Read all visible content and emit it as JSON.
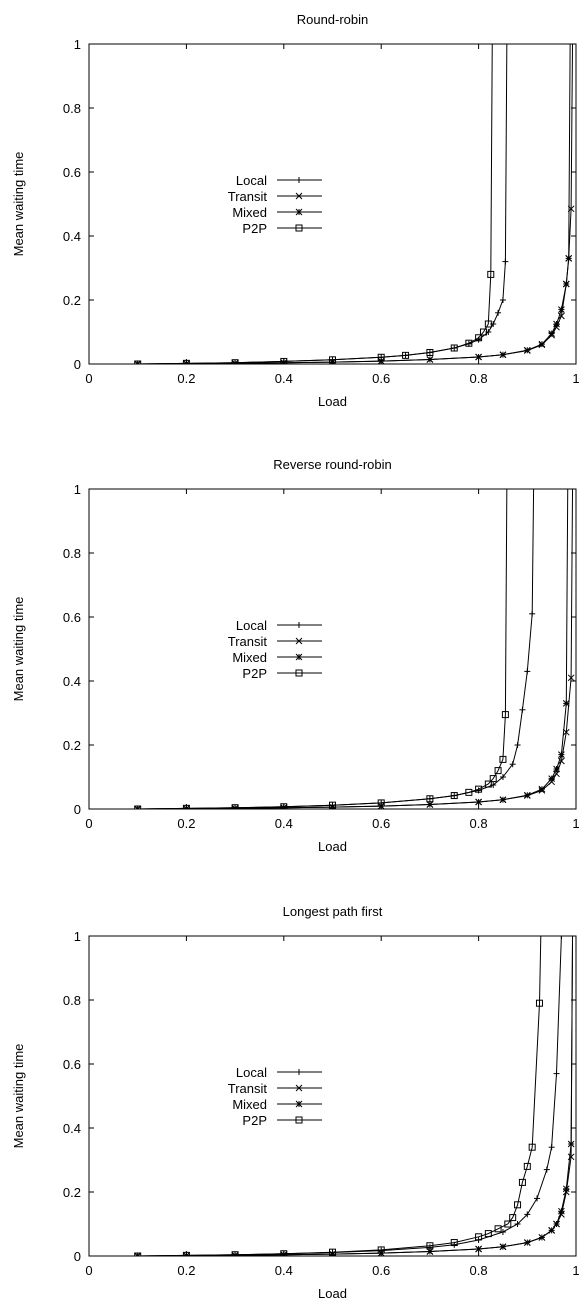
{
  "chart_data": [
    {
      "type": "line",
      "title": "Round-robin",
      "xlabel": "Load",
      "ylabel": "Mean waiting time",
      "xlim": [
        0,
        1
      ],
      "ylim": [
        0,
        1
      ],
      "xticks": [
        "0",
        "0.2",
        "0.4",
        "0.6",
        "0.8",
        "1"
      ],
      "yticks": [
        "0",
        "0.2",
        "0.4",
        "0.6",
        "0.8",
        "1"
      ],
      "grid": false,
      "legend_position": "center-left",
      "series": [
        {
          "name": "Local",
          "marker": "plus",
          "x": [
            0.1,
            0.2,
            0.3,
            0.4,
            0.5,
            0.6,
            0.65,
            0.7,
            0.75,
            0.78,
            0.8,
            0.82,
            0.83,
            0.84,
            0.85,
            0.855
          ],
          "y": [
            0,
            0.002,
            0.004,
            0.008,
            0.013,
            0.021,
            0.027,
            0.036,
            0.05,
            0.063,
            0.076,
            0.1,
            0.125,
            0.16,
            0.2,
            0.32
          ]
        },
        {
          "name": "Transit",
          "marker": "x",
          "x": [
            0.1,
            0.2,
            0.3,
            0.4,
            0.5,
            0.6,
            0.7,
            0.8,
            0.85,
            0.9,
            0.93,
            0.95,
            0.96,
            0.97,
            0.98,
            0.985,
            0.99
          ],
          "y": [
            0,
            0.001,
            0.002,
            0.004,
            0.006,
            0.009,
            0.014,
            0.022,
            0.029,
            0.042,
            0.06,
            0.09,
            0.115,
            0.15,
            0.25,
            0.33,
            0.485
          ]
        },
        {
          "name": "Mixed",
          "marker": "asterisk",
          "x": [
            0.1,
            0.2,
            0.3,
            0.4,
            0.5,
            0.6,
            0.7,
            0.8,
            0.85,
            0.9,
            0.93,
            0.95,
            0.96,
            0.97,
            0.98,
            0.985
          ],
          "y": [
            0,
            0.001,
            0.002,
            0.004,
            0.006,
            0.009,
            0.014,
            0.022,
            0.029,
            0.043,
            0.062,
            0.095,
            0.125,
            0.17,
            0.25,
            0.33
          ]
        },
        {
          "name": "P2P",
          "marker": "square",
          "x": [
            0.1,
            0.2,
            0.3,
            0.4,
            0.5,
            0.6,
            0.65,
            0.7,
            0.75,
            0.78,
            0.8,
            0.81,
            0.82,
            0.825
          ],
          "y": [
            0,
            0.002,
            0.004,
            0.008,
            0.013,
            0.021,
            0.027,
            0.036,
            0.05,
            0.065,
            0.082,
            0.1,
            0.125,
            0.28
          ]
        }
      ]
    },
    {
      "type": "line",
      "title": "Reverse round-robin",
      "xlabel": "Load",
      "ylabel": "Mean waiting time",
      "xlim": [
        0,
        1
      ],
      "ylim": [
        0,
        1
      ],
      "xticks": [
        "0",
        "0.2",
        "0.4",
        "0.6",
        "0.8",
        "1"
      ],
      "yticks": [
        "0",
        "0.2",
        "0.4",
        "0.6",
        "0.8",
        "1"
      ],
      "grid": false,
      "legend_position": "center-left",
      "series": [
        {
          "name": "Local",
          "marker": "plus",
          "x": [
            0.1,
            0.2,
            0.3,
            0.4,
            0.5,
            0.6,
            0.7,
            0.75,
            0.8,
            0.83,
            0.85,
            0.87,
            0.88,
            0.89,
            0.9,
            0.91
          ],
          "y": [
            0,
            0.002,
            0.004,
            0.007,
            0.012,
            0.019,
            0.032,
            0.042,
            0.058,
            0.075,
            0.1,
            0.14,
            0.2,
            0.31,
            0.43,
            0.61
          ]
        },
        {
          "name": "Transit",
          "marker": "x",
          "x": [
            0.1,
            0.2,
            0.3,
            0.4,
            0.5,
            0.6,
            0.7,
            0.8,
            0.85,
            0.9,
            0.93,
            0.95,
            0.96,
            0.97,
            0.98,
            0.99
          ],
          "y": [
            0,
            0.001,
            0.002,
            0.004,
            0.006,
            0.009,
            0.014,
            0.022,
            0.029,
            0.042,
            0.058,
            0.085,
            0.11,
            0.15,
            0.24,
            0.41
          ]
        },
        {
          "name": "Mixed",
          "marker": "asterisk",
          "x": [
            0.1,
            0.2,
            0.3,
            0.4,
            0.5,
            0.6,
            0.7,
            0.8,
            0.85,
            0.9,
            0.93,
            0.95,
            0.96,
            0.97,
            0.98
          ],
          "y": [
            0,
            0.001,
            0.002,
            0.004,
            0.006,
            0.009,
            0.014,
            0.022,
            0.029,
            0.043,
            0.062,
            0.095,
            0.125,
            0.17,
            0.33
          ]
        },
        {
          "name": "P2P",
          "marker": "square",
          "x": [
            0.1,
            0.2,
            0.3,
            0.4,
            0.5,
            0.6,
            0.7,
            0.75,
            0.78,
            0.8,
            0.82,
            0.83,
            0.84,
            0.85,
            0.855
          ],
          "y": [
            0,
            0.002,
            0.004,
            0.007,
            0.012,
            0.019,
            0.032,
            0.042,
            0.052,
            0.062,
            0.078,
            0.095,
            0.12,
            0.155,
            0.295
          ]
        }
      ]
    },
    {
      "type": "line",
      "title": "Longest path first",
      "xlabel": "Load",
      "ylabel": "Mean waiting time",
      "xlim": [
        0,
        1
      ],
      "ylim": [
        0,
        1
      ],
      "xticks": [
        "0",
        "0.2",
        "0.4",
        "0.6",
        "0.8",
        "1"
      ],
      "yticks": [
        "0",
        "0.2",
        "0.4",
        "0.6",
        "0.8",
        "1"
      ],
      "grid": false,
      "legend_position": "center-left",
      "series": [
        {
          "name": "Local",
          "marker": "plus",
          "x": [
            0.1,
            0.2,
            0.3,
            0.4,
            0.5,
            0.6,
            0.7,
            0.75,
            0.8,
            0.85,
            0.88,
            0.9,
            0.92,
            0.94,
            0.95,
            0.96,
            0.97
          ],
          "y": [
            0,
            0.002,
            0.004,
            0.007,
            0.011,
            0.017,
            0.027,
            0.035,
            0.05,
            0.075,
            0.1,
            0.13,
            0.18,
            0.27,
            0.34,
            0.57,
            1.0
          ]
        },
        {
          "name": "Transit",
          "marker": "x",
          "x": [
            0.1,
            0.2,
            0.3,
            0.4,
            0.5,
            0.6,
            0.7,
            0.8,
            0.85,
            0.9,
            0.93,
            0.95,
            0.96,
            0.97,
            0.98,
            0.99
          ],
          "y": [
            0,
            0.001,
            0.002,
            0.004,
            0.006,
            0.009,
            0.014,
            0.022,
            0.029,
            0.042,
            0.058,
            0.08,
            0.1,
            0.13,
            0.2,
            0.31
          ]
        },
        {
          "name": "Mixed",
          "marker": "asterisk",
          "x": [
            0.1,
            0.2,
            0.3,
            0.4,
            0.5,
            0.6,
            0.7,
            0.8,
            0.85,
            0.9,
            0.93,
            0.95,
            0.96,
            0.97,
            0.98,
            0.99
          ],
          "y": [
            0,
            0.001,
            0.002,
            0.004,
            0.006,
            0.009,
            0.014,
            0.022,
            0.029,
            0.042,
            0.058,
            0.08,
            0.1,
            0.14,
            0.21,
            0.35
          ]
        },
        {
          "name": "P2P",
          "marker": "square",
          "x": [
            0.1,
            0.2,
            0.3,
            0.4,
            0.5,
            0.6,
            0.7,
            0.75,
            0.8,
            0.82,
            0.84,
            0.86,
            0.87,
            0.88,
            0.89,
            0.9,
            0.91,
            0.925
          ],
          "y": [
            0,
            0.002,
            0.004,
            0.007,
            0.012,
            0.019,
            0.032,
            0.042,
            0.06,
            0.07,
            0.085,
            0.1,
            0.12,
            0.16,
            0.23,
            0.28,
            0.34,
            0.79
          ]
        }
      ]
    }
  ]
}
